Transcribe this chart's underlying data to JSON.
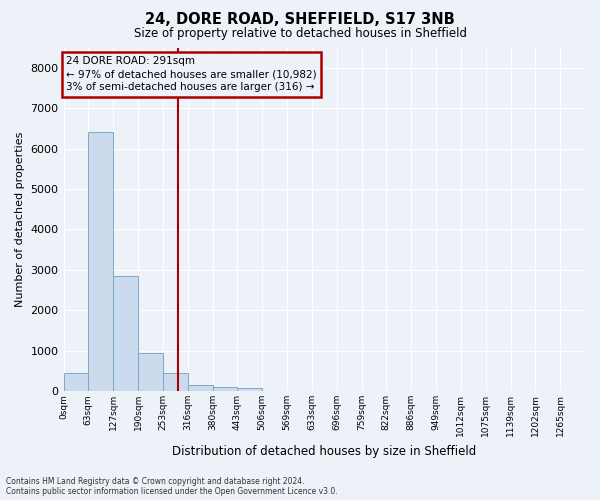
{
  "title1": "24, DORE ROAD, SHEFFIELD, S17 3NB",
  "title2": "Size of property relative to detached houses in Sheffield",
  "xlabel": "Distribution of detached houses by size in Sheffield",
  "ylabel": "Number of detached properties",
  "bar_labels": [
    "0sqm",
    "63sqm",
    "127sqm",
    "190sqm",
    "253sqm",
    "316sqm",
    "380sqm",
    "443sqm",
    "506sqm",
    "569sqm",
    "633sqm",
    "696sqm",
    "759sqm",
    "822sqm",
    "886sqm",
    "949sqm",
    "1012sqm",
    "1075sqm",
    "1139sqm",
    "1202sqm",
    "1265sqm"
  ],
  "bar_heights": [
    450,
    6400,
    2850,
    950,
    450,
    150,
    100,
    70,
    0,
    0,
    0,
    0,
    0,
    0,
    0,
    0,
    0,
    0,
    0,
    0,
    0
  ],
  "bar_color": "#ccdaed",
  "bar_edge_color": "#7aaac8",
  "annotation_text": "24 DORE ROAD: 291sqm\n← 97% of detached houses are smaller (10,982)\n3% of semi-detached houses are larger (316) →",
  "annotation_box_edgecolor": "#aa0000",
  "vline_color": "#aa0000",
  "ylim": [
    0,
    8500
  ],
  "yticks": [
    0,
    1000,
    2000,
    3000,
    4000,
    5000,
    6000,
    7000,
    8000
  ],
  "bg_color": "#edf1f8",
  "grid_color": "#ffffff",
  "footer1": "Contains HM Land Registry data © Crown copyright and database right 2024.",
  "footer2": "Contains public sector information licensed under the Open Government Licence v3.0."
}
